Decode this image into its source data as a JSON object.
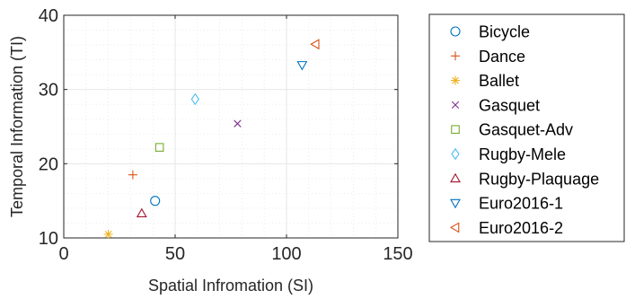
{
  "chart_data": {
    "type": "scatter",
    "xlabel": "Spatial Infromation (SI)",
    "ylabel": "Temporal Information (TI)",
    "xlim": [
      0,
      150
    ],
    "ylim": [
      10,
      40
    ],
    "xticks": [
      0,
      50,
      100,
      150
    ],
    "yticks": [
      10,
      20,
      30,
      40
    ],
    "grid": true,
    "minor_grid": true,
    "legend_position": "outside-right",
    "series": [
      {
        "name": "Bicycle",
        "x": [
          41
        ],
        "y": [
          15
        ],
        "marker": "circle",
        "color": "#0072BD"
      },
      {
        "name": "Dance",
        "x": [
          31
        ],
        "y": [
          18.5
        ],
        "marker": "plus",
        "color": "#D95319"
      },
      {
        "name": "Ballet",
        "x": [
          20
        ],
        "y": [
          10.5
        ],
        "marker": "asterisk",
        "color": "#EDB120"
      },
      {
        "name": "Gasquet",
        "x": [
          78
        ],
        "y": [
          25.4
        ],
        "marker": "x",
        "color": "#7E2F8E"
      },
      {
        "name": "Gasquet-Adv",
        "x": [
          43
        ],
        "y": [
          22.2
        ],
        "marker": "square",
        "color": "#77AC30"
      },
      {
        "name": "Rugby-Mele",
        "x": [
          59
        ],
        "y": [
          28.7
        ],
        "marker": "diamond",
        "color": "#4DBEEE"
      },
      {
        "name": "Rugby-Plaquage",
        "x": [
          35
        ],
        "y": [
          13.3
        ],
        "marker": "triangle-up",
        "color": "#A2142F"
      },
      {
        "name": "Euro2016-1",
        "x": [
          107
        ],
        "y": [
          33.3
        ],
        "marker": "triangle-down",
        "color": "#0072BD"
      },
      {
        "name": "Euro2016-2",
        "x": [
          113
        ],
        "y": [
          36.1
        ],
        "marker": "triangle-left",
        "color": "#D95319"
      }
    ]
  }
}
